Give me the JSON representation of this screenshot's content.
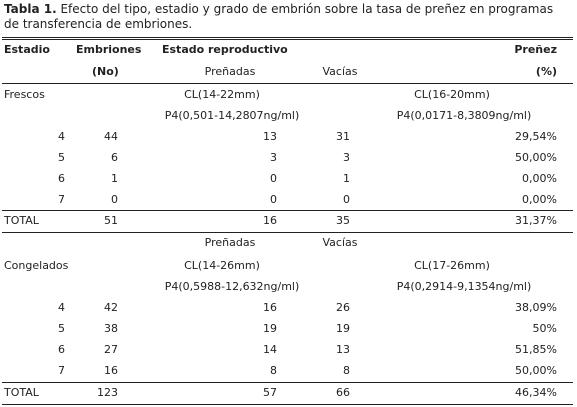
{
  "caption": {
    "label": "Tabla 1.",
    "text": "Efecto del tipo, estadio y grado de embrión sobre la tasa de preñez en programas de transferencia de embriones."
  },
  "header": {
    "row1": [
      "Estadio",
      "Embriones",
      "Estado reproductivo",
      "Preñez"
    ],
    "row2": [
      "(No)",
      "Preñadas",
      "Vacías",
      "(%)"
    ]
  },
  "sections": [
    {
      "name": "Frescos",
      "cl": [
        "CL(14-22mm)",
        "CL(16-20mm)"
      ],
      "p4": [
        "P4(0,501-14,2807ng/ml)",
        "P4(0,0171-8,3809ng/ml)"
      ],
      "rows": [
        [
          4,
          44,
          13,
          31,
          "29,54%"
        ],
        [
          5,
          6,
          3,
          3,
          "50,00%"
        ],
        [
          6,
          1,
          0,
          1,
          "0,00%"
        ],
        [
          7,
          0,
          0,
          0,
          "0,00%"
        ]
      ],
      "total": [
        "TOTAL",
        51,
        16,
        35,
        "31,37%"
      ]
    },
    {
      "subheader": [
        "Preñadas",
        "Vacías"
      ],
      "name": "Congelados",
      "cl": [
        "CL(14-26mm)",
        "CL(17-26mm)"
      ],
      "p4": [
        "P4(0,5988-12,632ng/ml)",
        "P4(0,2914-9,1354ng/ml)"
      ],
      "rows": [
        [
          4,
          42,
          16,
          26,
          "38,09%"
        ],
        [
          5,
          38,
          19,
          19,
          "50%"
        ],
        [
          6,
          27,
          14,
          13,
          "51,85%"
        ],
        [
          7,
          16,
          8,
          8,
          "50,00%"
        ]
      ],
      "total": [
        "TOTAL",
        123,
        57,
        66,
        "46,34%"
      ]
    }
  ]
}
